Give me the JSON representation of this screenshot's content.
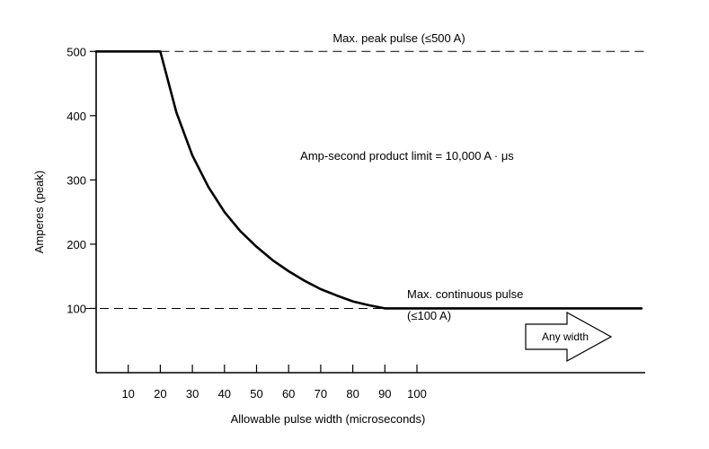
{
  "chart_data": {
    "type": "line",
    "title": "",
    "xlabel": "Allowable pulse width (microseconds)",
    "ylabel": "Amperes (peak)",
    "xlim": [
      0,
      170
    ],
    "ylim": [
      0,
      500
    ],
    "x_ticks": [
      10,
      20,
      30,
      40,
      50,
      60,
      70,
      80,
      90,
      100
    ],
    "y_ticks": [
      100,
      200,
      300,
      400,
      500
    ],
    "grid": false,
    "series": [
      {
        "x": [
          0,
          20,
          25,
          30,
          35,
          40,
          45,
          50,
          55,
          60,
          65,
          70,
          75,
          80,
          85,
          90,
          100,
          170
        ],
        "values": [
          500,
          500,
          405,
          338,
          289,
          250,
          220,
          196,
          175,
          158,
          143,
          130,
          120,
          111,
          105,
          100,
          100,
          100
        ]
      }
    ],
    "reference_lines": [
      {
        "y": 500,
        "label": "Max. peak pulse (≤500 A)"
      },
      {
        "y": 100,
        "label_line1": "Max. continuous pulse",
        "label_line2": "(≤100 A)"
      }
    ],
    "annotations": {
      "amp_second": "Amp-second product limit = 10,000 A · μs",
      "arrow": "Any width"
    }
  }
}
